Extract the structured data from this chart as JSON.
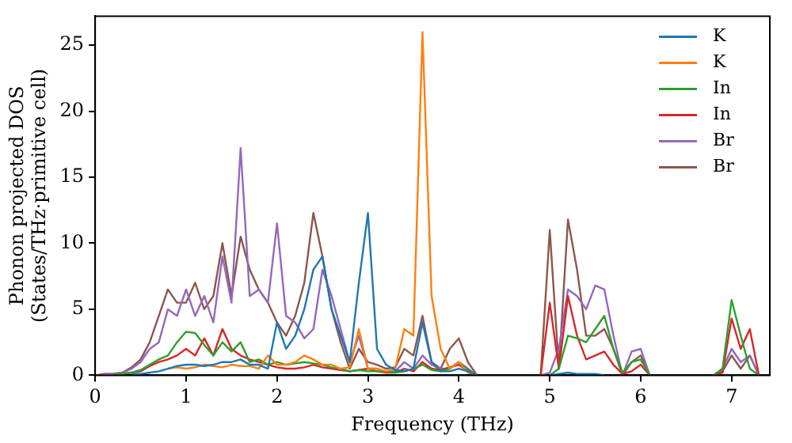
{
  "chart_data": {
    "type": "line",
    "xlabel": "Frequency (THz)",
    "ylabel": "Phonon projected DOS\n(States/THz·primitive cell)",
    "x": [
      0,
      0.1,
      0.2,
      0.3,
      0.4,
      0.5,
      0.6,
      0.7,
      0.8,
      0.9,
      1,
      1.1,
      1.2,
      1.3,
      1.4,
      1.5,
      1.6,
      1.7,
      1.8,
      1.9,
      2,
      2.1,
      2.2,
      2.3,
      2.4,
      2.5,
      2.6,
      2.7,
      2.8,
      2.9,
      3,
      3.1,
      3.2,
      3.3,
      3.4,
      3.5,
      3.6,
      3.7,
      3.8,
      3.9,
      4,
      4.1,
      4.2,
      4.3,
      4.4,
      4.5,
      4.6,
      4.7,
      4.8,
      4.9,
      5,
      5.1,
      5.2,
      5.3,
      5.4,
      5.5,
      5.6,
      5.7,
      5.8,
      5.9,
      6,
      6.1,
      6.2,
      6.3,
      6.4,
      6.5,
      6.6,
      6.7,
      6.8,
      6.9,
      7,
      7.1,
      7.2,
      7.3
    ],
    "series": [
      {
        "name": "K",
        "color": "#1f77b4",
        "values": [
          null,
          null,
          null,
          null,
          0.1,
          0.1,
          0.2,
          0.3,
          0.5,
          0.7,
          0.8,
          0.8,
          0.7,
          0.8,
          1.0,
          1.0,
          1.2,
          0.8,
          0.8,
          0.5,
          4.0,
          2.0,
          3.0,
          5.0,
          8.0,
          9.0,
          5.0,
          3.0,
          1.0,
          7.0,
          12.3,
          2.0,
          0.8,
          0.4,
          0.3,
          0.5,
          4.0,
          1.0,
          0.3,
          0.3,
          0.5,
          0.3,
          0,
          null,
          null,
          null,
          null,
          null,
          null,
          null,
          0,
          0.1,
          0.2,
          0.1,
          0.1,
          0.1,
          0,
          null,
          null,
          null,
          null,
          null,
          null,
          null,
          null,
          null,
          null,
          null,
          null,
          null,
          null,
          null,
          null,
          null
        ]
      },
      {
        "name": "K",
        "color": "#ff7f0e",
        "values": [
          null,
          null,
          null,
          null,
          null,
          null,
          null,
          null,
          0.5,
          0.6,
          0.5,
          0.6,
          0.8,
          0.7,
          0.6,
          0.8,
          0.7,
          0.7,
          0.5,
          1.5,
          0.8,
          0.8,
          1.0,
          1.5,
          1.2,
          0.8,
          0.8,
          0.5,
          0.6,
          3.5,
          0.5,
          0.5,
          0.3,
          0.5,
          3.5,
          3.0,
          26.0,
          6.0,
          2.0,
          0.5,
          1.0,
          0.2,
          0,
          null,
          null,
          null,
          null,
          null,
          null,
          null,
          null,
          null,
          null,
          null,
          null,
          null,
          null,
          null,
          null,
          null,
          null,
          null,
          null,
          null,
          null,
          null,
          null,
          null,
          null,
          null,
          null,
          null,
          null,
          null
        ]
      },
      {
        "name": "In",
        "color": "#2ca02c",
        "values": [
          null,
          null,
          0.1,
          0.1,
          0.2,
          0.4,
          0.8,
          1.2,
          1.5,
          2.5,
          3.3,
          3.2,
          2.3,
          1.5,
          2.5,
          1.8,
          2.5,
          1.0,
          1.2,
          0.8,
          1.0,
          0.8,
          0.9,
          1.0,
          0.9,
          0.8,
          0.6,
          0.5,
          0.3,
          0.4,
          0.3,
          0.3,
          0.3,
          0.2,
          0.3,
          0.5,
          0.8,
          0.4,
          0.3,
          0.5,
          1.0,
          0.4,
          0,
          null,
          null,
          null,
          null,
          null,
          null,
          null,
          0,
          0.5,
          3.0,
          2.8,
          2.5,
          3.5,
          4.5,
          2.0,
          0.2,
          1.0,
          1.2,
          0,
          null,
          null,
          null,
          null,
          null,
          null,
          0,
          0.5,
          5.7,
          3.0,
          0.5,
          0
        ]
      },
      {
        "name": "In",
        "color": "#d62728",
        "values": [
          null,
          null,
          0.1,
          0.1,
          0.2,
          0.3,
          0.7,
          1.0,
          1.2,
          1.5,
          2.0,
          1.5,
          2.8,
          1.5,
          3.5,
          2.0,
          1.5,
          1.2,
          1.0,
          0.8,
          0.6,
          0.5,
          0.5,
          0.6,
          0.8,
          0.6,
          0.5,
          0.4,
          0.3,
          0.4,
          0.5,
          0.3,
          0.2,
          0.2,
          0.5,
          0.3,
          1.0,
          0.5,
          0.4,
          0.6,
          0.8,
          0.3,
          0,
          null,
          null,
          null,
          null,
          null,
          null,
          0,
          5.5,
          0.5,
          6.0,
          3.0,
          1.2,
          1.5,
          1.8,
          0.8,
          0.1,
          0.3,
          0.8,
          0,
          null,
          null,
          null,
          null,
          null,
          null,
          0,
          0.2,
          4.3,
          2.0,
          3.5,
          0
        ]
      },
      {
        "name": "Br",
        "color": "#9467bd",
        "values": [
          null,
          0.1,
          0.1,
          0.2,
          0.5,
          1.0,
          2.0,
          2.5,
          5.0,
          4.5,
          6.5,
          4.5,
          6.0,
          4.0,
          9.0,
          5.5,
          17.2,
          6.0,
          6.5,
          5.5,
          11.5,
          4.5,
          4.0,
          2.8,
          3.5,
          8.0,
          6.0,
          3.5,
          1.0,
          3.0,
          0.5,
          0.5,
          0.3,
          0.3,
          1.0,
          0.5,
          1.5,
          0.8,
          0.5,
          0.5,
          1.0,
          0.5,
          0,
          null,
          null,
          null,
          null,
          null,
          null,
          0,
          0.2,
          2.0,
          6.5,
          6.0,
          5.0,
          6.8,
          6.5,
          3.0,
          0,
          1.8,
          2.0,
          0,
          null,
          null,
          null,
          null,
          null,
          null,
          0,
          0.5,
          2.0,
          1.0,
          1.5,
          0
        ]
      },
      {
        "name": "Br",
        "color": "#8c564b",
        "values": [
          0,
          0.1,
          0.1,
          0.2,
          0.6,
          1.2,
          2.5,
          4.5,
          6.5,
          5.5,
          5.5,
          7.0,
          5.0,
          6.0,
          10.0,
          6.0,
          10.5,
          8.0,
          6.5,
          5.5,
          4.0,
          3.0,
          4.5,
          7.0,
          12.3,
          9.0,
          5.0,
          2.5,
          0.5,
          2.0,
          1.0,
          0.8,
          0.5,
          0.6,
          2.0,
          1.5,
          4.5,
          1.0,
          0.5,
          2.0,
          2.8,
          1.0,
          0,
          null,
          null,
          null,
          null,
          null,
          null,
          0,
          11.0,
          0.5,
          11.8,
          8.0,
          3.0,
          3.0,
          3.5,
          2.0,
          0,
          1.0,
          1.5,
          0,
          null,
          null,
          null,
          null,
          null,
          null,
          0,
          0.3,
          1.5,
          0.5,
          1.5,
          0
        ]
      }
    ],
    "xlim": [
      0,
      7.42
    ],
    "xticks": [
      0,
      1,
      2,
      3,
      4,
      5,
      6,
      7
    ],
    "ylim": [
      0,
      27.2
    ],
    "yticks": [
      0,
      5,
      10,
      15,
      20,
      25
    ],
    "legend": "top right",
    "grid": false
  }
}
